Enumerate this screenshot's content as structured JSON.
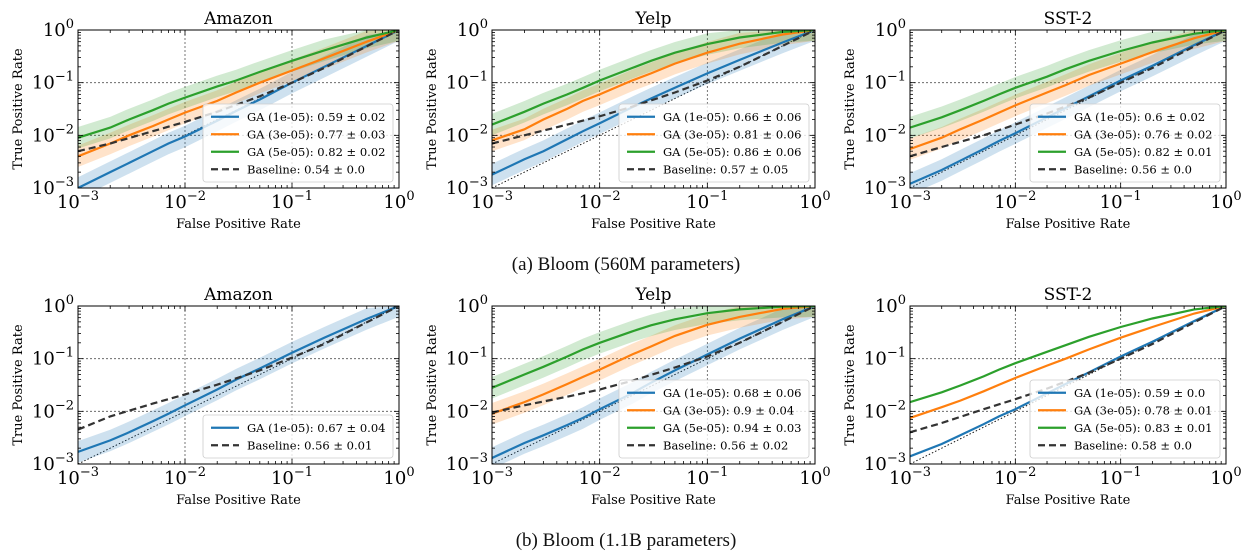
{
  "figure": {
    "captions": [
      "(a) Bloom (560M parameters)",
      "(b) Bloom (1.1B parameters)"
    ]
  },
  "chart_data": [
    {
      "type": "line",
      "title": "Amazon",
      "xlabel": "False Positive Rate",
      "ylabel": "True Positive Rate",
      "xscale": "log",
      "yscale": "log",
      "xlim": [
        0.001,
        1
      ],
      "ylim": [
        0.001,
        1
      ],
      "xticks": [
        "10^-3",
        "10^-2",
        "10^-1",
        "10^0"
      ],
      "yticks": [
        "10^-3",
        "10^-2",
        "10^-1",
        "10^0"
      ],
      "grid": true,
      "legend": "lower-right",
      "series": [
        {
          "name": "GA (1e-05): 0.59 ± 0.02",
          "color": "#1f77b4",
          "band": true,
          "x": [
            0.001,
            0.002,
            0.003,
            0.005,
            0.007,
            0.01,
            0.02,
            0.03,
            0.05,
            0.1,
            0.2,
            0.5,
            1
          ],
          "y": [
            0.001,
            0.002,
            0.003,
            0.005,
            0.007,
            0.0095,
            0.019,
            0.029,
            0.048,
            0.1,
            0.2,
            0.5,
            1
          ]
        },
        {
          "name": "GA (3e-05): 0.77 ± 0.03",
          "color": "#ff7f0e",
          "band": true,
          "x": [
            0.001,
            0.002,
            0.003,
            0.005,
            0.007,
            0.01,
            0.02,
            0.03,
            0.05,
            0.1,
            0.2,
            0.5,
            1
          ],
          "y": [
            0.004,
            0.007,
            0.01,
            0.015,
            0.02,
            0.027,
            0.045,
            0.065,
            0.1,
            0.17,
            0.29,
            0.6,
            1
          ]
        },
        {
          "name": "GA (5e-05): 0.82 ± 0.02",
          "color": "#2ca02c",
          "band": true,
          "x": [
            0.001,
            0.002,
            0.003,
            0.005,
            0.007,
            0.01,
            0.02,
            0.03,
            0.05,
            0.1,
            0.2,
            0.5,
            1
          ],
          "y": [
            0.009,
            0.014,
            0.02,
            0.03,
            0.04,
            0.052,
            0.085,
            0.11,
            0.16,
            0.26,
            0.41,
            0.72,
            1
          ]
        },
        {
          "name": "Baseline: 0.54 ± 0.0",
          "color": "#333333",
          "dashed": true,
          "x": [
            0.001,
            0.002,
            0.005,
            0.01,
            0.02,
            0.05,
            0.1,
            0.2,
            0.5,
            1
          ],
          "y": [
            0.005,
            0.007,
            0.012,
            0.018,
            0.028,
            0.055,
            0.1,
            0.19,
            0.49,
            1
          ]
        }
      ]
    },
    {
      "type": "line",
      "title": "Yelp",
      "xlabel": "False Positive Rate",
      "ylabel": "True Positive Rate",
      "xscale": "log",
      "yscale": "log",
      "xlim": [
        0.001,
        1
      ],
      "ylim": [
        0.001,
        1
      ],
      "xticks": [
        "10^-3",
        "10^-2",
        "10^-1",
        "10^0"
      ],
      "yticks": [
        "10^-3",
        "10^-2",
        "10^-1",
        "10^0"
      ],
      "grid": true,
      "legend": "lower-right",
      "series": [
        {
          "name": "GA (1e-05): 0.66 ± 0.06",
          "color": "#1f77b4",
          "band": true,
          "x": [
            0.001,
            0.002,
            0.003,
            0.005,
            0.007,
            0.01,
            0.02,
            0.03,
            0.05,
            0.1,
            0.2,
            0.5,
            1
          ],
          "y": [
            0.0018,
            0.0035,
            0.005,
            0.0085,
            0.012,
            0.017,
            0.034,
            0.05,
            0.08,
            0.15,
            0.27,
            0.58,
            1
          ]
        },
        {
          "name": "GA (3e-05): 0.81 ± 0.06",
          "color": "#ff7f0e",
          "band": true,
          "x": [
            0.001,
            0.002,
            0.003,
            0.005,
            0.007,
            0.01,
            0.02,
            0.03,
            0.05,
            0.1,
            0.2,
            0.5,
            1
          ],
          "y": [
            0.008,
            0.013,
            0.02,
            0.032,
            0.045,
            0.06,
            0.11,
            0.15,
            0.23,
            0.37,
            0.55,
            0.82,
            1
          ]
        },
        {
          "name": "GA (5e-05): 0.86 ± 0.06",
          "color": "#2ca02c",
          "band": true,
          "x": [
            0.001,
            0.002,
            0.003,
            0.005,
            0.007,
            0.01,
            0.02,
            0.03,
            0.05,
            0.1,
            0.2,
            0.5,
            1
          ],
          "y": [
            0.016,
            0.028,
            0.04,
            0.06,
            0.08,
            0.11,
            0.19,
            0.26,
            0.37,
            0.54,
            0.72,
            0.92,
            1
          ]
        },
        {
          "name": "Baseline: 0.57 ± 0.05",
          "color": "#333333",
          "dashed": true,
          "x": [
            0.001,
            0.002,
            0.005,
            0.01,
            0.02,
            0.05,
            0.1,
            0.2,
            0.5,
            1
          ],
          "y": [
            0.007,
            0.01,
            0.016,
            0.023,
            0.035,
            0.065,
            0.11,
            0.2,
            0.5,
            1
          ]
        }
      ]
    },
    {
      "type": "line",
      "title": "SST-2",
      "xlabel": "False Positive Rate",
      "ylabel": "True Positive Rate",
      "xscale": "log",
      "yscale": "log",
      "xlim": [
        0.001,
        1
      ],
      "ylim": [
        0.001,
        1
      ],
      "xticks": [
        "10^-3",
        "10^-2",
        "10^-1",
        "10^0"
      ],
      "yticks": [
        "10^-3",
        "10^-2",
        "10^-1",
        "10^0"
      ],
      "grid": true,
      "legend": "lower-right",
      "series": [
        {
          "name": "GA (1e-05): 0.6 ± 0.02",
          "color": "#1f77b4",
          "band": true,
          "x": [
            0.001,
            0.002,
            0.003,
            0.005,
            0.007,
            0.01,
            0.02,
            0.03,
            0.05,
            0.1,
            0.2,
            0.5,
            1
          ],
          "y": [
            0.0012,
            0.0022,
            0.0033,
            0.0055,
            0.0078,
            0.011,
            0.022,
            0.033,
            0.055,
            0.11,
            0.21,
            0.52,
            1
          ]
        },
        {
          "name": "GA (3e-05): 0.76 ± 0.02",
          "color": "#ff7f0e",
          "band": true,
          "x": [
            0.001,
            0.002,
            0.003,
            0.005,
            0.007,
            0.01,
            0.02,
            0.03,
            0.05,
            0.1,
            0.2,
            0.5,
            1
          ],
          "y": [
            0.0055,
            0.009,
            0.013,
            0.02,
            0.027,
            0.037,
            0.065,
            0.09,
            0.14,
            0.23,
            0.38,
            0.7,
            1
          ]
        },
        {
          "name": "GA (5e-05): 0.82 ± 0.01",
          "color": "#2ca02c",
          "band": true,
          "x": [
            0.001,
            0.002,
            0.003,
            0.005,
            0.007,
            0.01,
            0.02,
            0.03,
            0.05,
            0.1,
            0.2,
            0.5,
            1
          ],
          "y": [
            0.014,
            0.022,
            0.03,
            0.045,
            0.06,
            0.08,
            0.13,
            0.18,
            0.26,
            0.4,
            0.58,
            0.85,
            1
          ]
        },
        {
          "name": "Baseline: 0.56 ± 0.0",
          "color": "#333333",
          "dashed": true,
          "x": [
            0.001,
            0.002,
            0.005,
            0.01,
            0.02,
            0.05,
            0.1,
            0.2,
            0.5,
            1
          ],
          "y": [
            0.004,
            0.006,
            0.01,
            0.016,
            0.026,
            0.052,
            0.1,
            0.19,
            0.49,
            1
          ]
        }
      ]
    },
    {
      "type": "line",
      "title": "Amazon",
      "xlabel": "False Positive Rate",
      "ylabel": "True Positive Rate",
      "xscale": "log",
      "yscale": "log",
      "xlim": [
        0.001,
        1
      ],
      "ylim": [
        0.001,
        1
      ],
      "xticks": [
        "10^-3",
        "10^-2",
        "10^-1",
        "10^0"
      ],
      "yticks": [
        "10^-3",
        "10^-2",
        "10^-1",
        "10^0"
      ],
      "grid": true,
      "legend": "lower-right",
      "series": [
        {
          "name": "GA (1e-05): 0.67 ± 0.04",
          "color": "#1f77b4",
          "band": true,
          "x": [
            0.001,
            0.002,
            0.003,
            0.005,
            0.007,
            0.01,
            0.02,
            0.03,
            0.05,
            0.1,
            0.2,
            0.5,
            1
          ],
          "y": [
            0.0017,
            0.0028,
            0.004,
            0.0065,
            0.009,
            0.013,
            0.026,
            0.04,
            0.065,
            0.13,
            0.25,
            0.57,
            1
          ]
        },
        {
          "name": "Baseline: 0.56 ± 0.01",
          "color": "#333333",
          "dashed": true,
          "x": [
            0.001,
            0.002,
            0.005,
            0.01,
            0.02,
            0.05,
            0.1,
            0.2,
            0.5,
            1
          ],
          "y": [
            0.0045,
            0.008,
            0.014,
            0.021,
            0.032,
            0.06,
            0.105,
            0.19,
            0.49,
            1
          ]
        }
      ]
    },
    {
      "type": "line",
      "title": "Yelp",
      "xlabel": "False Positive Rate",
      "ylabel": "True Positive Rate",
      "xscale": "log",
      "yscale": "log",
      "xlim": [
        0.001,
        1
      ],
      "ylim": [
        0.001,
        1
      ],
      "xticks": [
        "10^-3",
        "10^-2",
        "10^-1",
        "10^0"
      ],
      "yticks": [
        "10^-3",
        "10^-2",
        "10^-1",
        "10^0"
      ],
      "grid": true,
      "legend": "lower-right",
      "series": [
        {
          "name": "GA (1e-05): 0.68 ± 0.06",
          "color": "#1f77b4",
          "band": true,
          "x": [
            0.001,
            0.002,
            0.003,
            0.005,
            0.007,
            0.01,
            0.02,
            0.03,
            0.05,
            0.1,
            0.2,
            0.5,
            1
          ],
          "y": [
            0.0013,
            0.0025,
            0.0035,
            0.0055,
            0.0075,
            0.011,
            0.022,
            0.035,
            0.06,
            0.12,
            0.24,
            0.56,
            1
          ]
        },
        {
          "name": "GA (3e-05): 0.9 ± 0.04",
          "color": "#ff7f0e",
          "band": true,
          "x": [
            0.001,
            0.002,
            0.003,
            0.005,
            0.007,
            0.01,
            0.02,
            0.03,
            0.05,
            0.1,
            0.2,
            0.5,
            1
          ],
          "y": [
            0.009,
            0.015,
            0.021,
            0.033,
            0.045,
            0.062,
            0.12,
            0.17,
            0.27,
            0.44,
            0.62,
            0.88,
            1
          ]
        },
        {
          "name": "GA (5e-05): 0.94 ± 0.03",
          "color": "#2ca02c",
          "band": true,
          "x": [
            0.001,
            0.002,
            0.003,
            0.005,
            0.007,
            0.01,
            0.02,
            0.03,
            0.05,
            0.1,
            0.2,
            0.5,
            1
          ],
          "y": [
            0.028,
            0.05,
            0.07,
            0.11,
            0.15,
            0.2,
            0.33,
            0.43,
            0.56,
            0.73,
            0.86,
            0.97,
            1
          ]
        },
        {
          "name": "Baseline: 0.56 ± 0.02",
          "color": "#333333",
          "dashed": true,
          "x": [
            0.001,
            0.002,
            0.005,
            0.01,
            0.02,
            0.05,
            0.1,
            0.2,
            0.5,
            1
          ],
          "y": [
            0.0095,
            0.013,
            0.019,
            0.026,
            0.038,
            0.068,
            0.11,
            0.2,
            0.5,
            1
          ]
        }
      ]
    },
    {
      "type": "line",
      "title": "SST-2",
      "xlabel": "False Positive Rate",
      "ylabel": "True Positive Rate",
      "xscale": "log",
      "yscale": "log",
      "xlim": [
        0.001,
        1
      ],
      "ylim": [
        0.001,
        1
      ],
      "xticks": [
        "10^-3",
        "10^-2",
        "10^-1",
        "10^0"
      ],
      "yticks": [
        "10^-3",
        "10^-2",
        "10^-1",
        "10^0"
      ],
      "grid": true,
      "legend": "lower-right",
      "series": [
        {
          "name": "GA (1e-05): 0.59 ± 0.0",
          "color": "#1f77b4",
          "band": false,
          "x": [
            0.001,
            0.002,
            0.003,
            0.005,
            0.007,
            0.01,
            0.02,
            0.03,
            0.05,
            0.1,
            0.2,
            0.5,
            1
          ],
          "y": [
            0.0014,
            0.0024,
            0.0035,
            0.0057,
            0.008,
            0.011,
            0.022,
            0.033,
            0.055,
            0.11,
            0.21,
            0.52,
            1
          ]
        },
        {
          "name": "GA (3e-05): 0.78 ± 0.01",
          "color": "#ff7f0e",
          "band": false,
          "x": [
            0.001,
            0.002,
            0.003,
            0.005,
            0.007,
            0.01,
            0.02,
            0.03,
            0.05,
            0.1,
            0.2,
            0.5,
            1
          ],
          "y": [
            0.0075,
            0.012,
            0.016,
            0.024,
            0.032,
            0.043,
            0.074,
            0.1,
            0.15,
            0.25,
            0.4,
            0.72,
            1
          ]
        },
        {
          "name": "GA (5e-05): 0.83 ± 0.01",
          "color": "#2ca02c",
          "band": false,
          "x": [
            0.001,
            0.002,
            0.003,
            0.005,
            0.007,
            0.01,
            0.02,
            0.03,
            0.05,
            0.1,
            0.2,
            0.5,
            1
          ],
          "y": [
            0.015,
            0.023,
            0.031,
            0.046,
            0.062,
            0.082,
            0.135,
            0.18,
            0.26,
            0.4,
            0.58,
            0.86,
            1
          ]
        },
        {
          "name": "Baseline: 0.58 ± 0.0",
          "color": "#333333",
          "dashed": true,
          "x": [
            0.001,
            0.002,
            0.005,
            0.01,
            0.02,
            0.05,
            0.1,
            0.2,
            0.5,
            1
          ],
          "y": [
            0.004,
            0.006,
            0.011,
            0.017,
            0.027,
            0.054,
            0.1,
            0.19,
            0.49,
            1
          ]
        }
      ]
    }
  ]
}
